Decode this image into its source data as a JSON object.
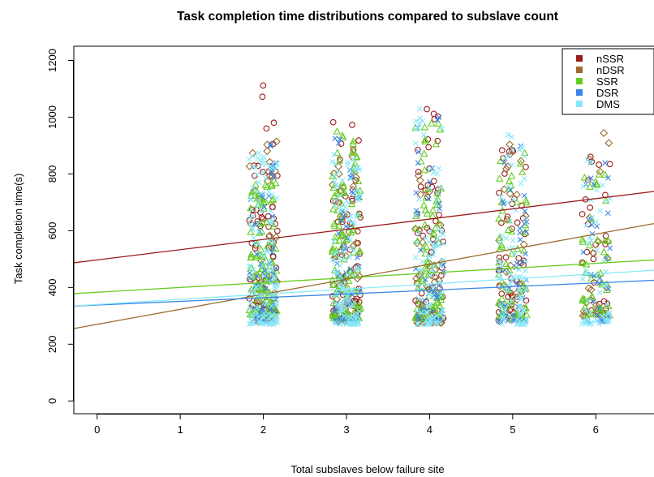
{
  "chart_data": {
    "type": "scatter",
    "title": "Task completion time distributions compared to subslave count",
    "xlabel": "Total subslaves below failure site",
    "ylabel": "Task completion time(s)",
    "xlim": [
      -0.28,
      6.7
    ],
    "ylim": [
      -45,
      1250
    ],
    "xticks": [
      0,
      1,
      2,
      3,
      4,
      5,
      6
    ],
    "yticks": [
      0,
      200,
      400,
      600,
      800,
      1000,
      1200
    ],
    "x_groups": [
      2,
      3,
      4,
      5,
      6
    ],
    "grid": false,
    "legend_position": "top-right",
    "series": [
      {
        "name": "nSSR",
        "color": "#9B1B1B",
        "marker": "circle",
        "fit": {
          "intercept": 497,
          "slope": 36
        },
        "groups": [
          {
            "x": 2,
            "n": 70,
            "min": 300,
            "max": 1120
          },
          {
            "x": 3,
            "n": 70,
            "min": 300,
            "max": 1020
          },
          {
            "x": 4,
            "n": 65,
            "min": 290,
            "max": 1040
          },
          {
            "x": 5,
            "n": 50,
            "min": 300,
            "max": 935
          },
          {
            "x": 6,
            "n": 30,
            "min": 300,
            "max": 990
          }
        ]
      },
      {
        "name": "nDSR",
        "color": "#9B6B2F",
        "marker": "diamond",
        "fit": {
          "intercept": 270,
          "slope": 53
        },
        "groups": [
          {
            "x": 2,
            "n": 35,
            "min": 280,
            "max": 930
          },
          {
            "x": 3,
            "n": 40,
            "min": 280,
            "max": 900
          },
          {
            "x": 4,
            "n": 40,
            "min": 275,
            "max": 935
          },
          {
            "x": 5,
            "n": 30,
            "min": 280,
            "max": 935
          },
          {
            "x": 6,
            "n": 22,
            "min": 300,
            "max": 950
          }
        ]
      },
      {
        "name": "SSR",
        "color": "#66CC22",
        "marker": "triangle",
        "fit": {
          "intercept": 383,
          "slope": 17
        },
        "groups": [
          {
            "x": 2,
            "n": 120,
            "min": 300,
            "max": 800
          },
          {
            "x": 3,
            "n": 120,
            "min": 290,
            "max": 950
          },
          {
            "x": 4,
            "n": 80,
            "min": 290,
            "max": 985
          },
          {
            "x": 5,
            "n": 65,
            "min": 290,
            "max": 920
          },
          {
            "x": 6,
            "n": 45,
            "min": 300,
            "max": 830
          }
        ]
      },
      {
        "name": "DSR",
        "color": "#3A86E8",
        "marker": "x",
        "fit": {
          "intercept": 338,
          "slope": 13
        },
        "groups": [
          {
            "x": 2,
            "n": 60,
            "min": 280,
            "max": 935
          },
          {
            "x": 3,
            "n": 60,
            "min": 280,
            "max": 940
          },
          {
            "x": 4,
            "n": 45,
            "min": 280,
            "max": 1030
          },
          {
            "x": 5,
            "n": 40,
            "min": 280,
            "max": 920
          },
          {
            "x": 6,
            "n": 30,
            "min": 280,
            "max": 905
          }
        ]
      },
      {
        "name": "DMS",
        "color": "#88E8F8",
        "marker": "x",
        "fit": {
          "intercept": 340,
          "slope": 18
        },
        "groups": [
          {
            "x": 2,
            "n": 120,
            "min": 270,
            "max": 880
          },
          {
            "x": 3,
            "n": 120,
            "min": 270,
            "max": 880
          },
          {
            "x": 4,
            "n": 90,
            "min": 270,
            "max": 1030
          },
          {
            "x": 5,
            "n": 80,
            "min": 270,
            "max": 970
          },
          {
            "x": 6,
            "n": 50,
            "min": 270,
            "max": 880
          }
        ]
      }
    ]
  }
}
